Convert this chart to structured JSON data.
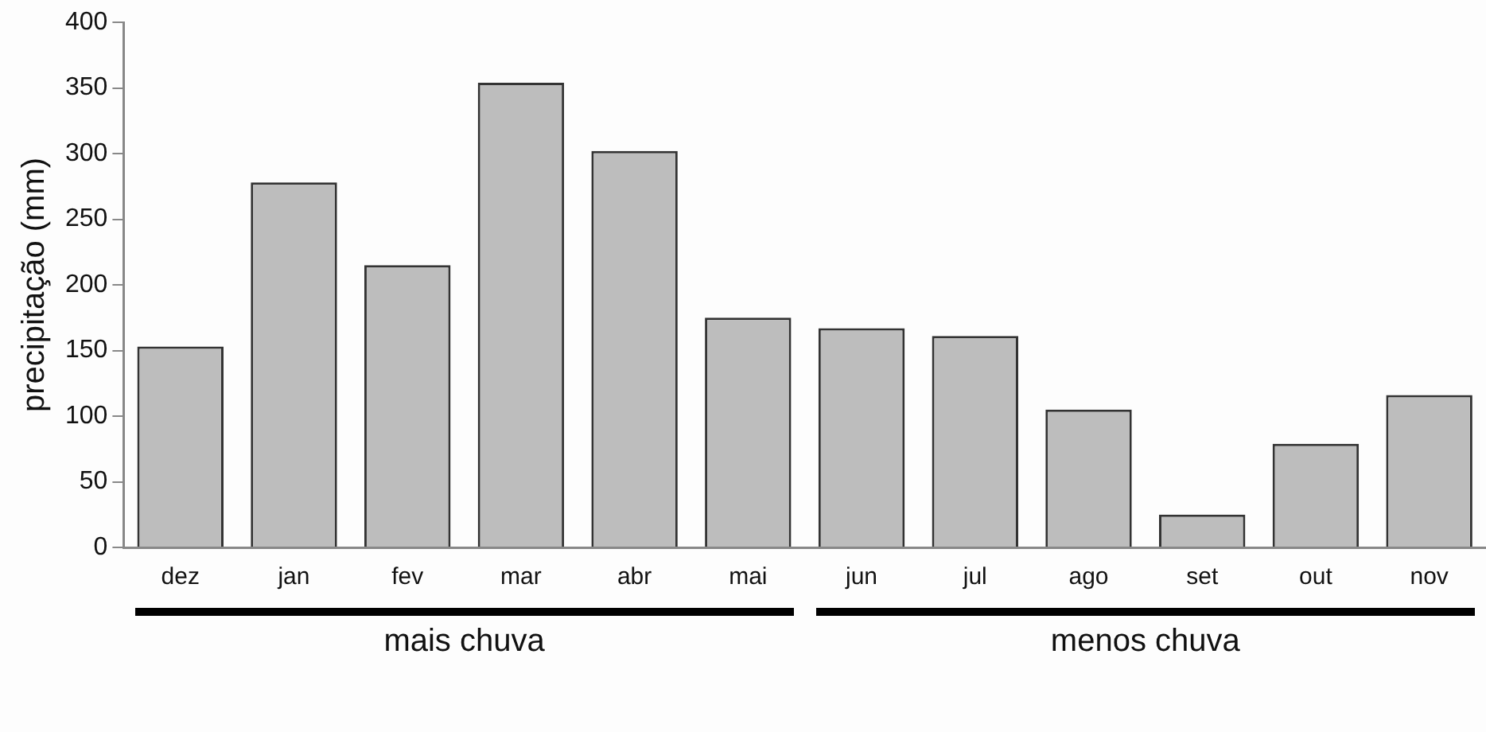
{
  "chart_data": {
    "type": "bar",
    "ylabel": "precipitação (mm)",
    "categories": [
      "dez",
      "jan",
      "fev",
      "mar",
      "abr",
      "mai",
      "jun",
      "jul",
      "ago",
      "set",
      "out",
      "nov"
    ],
    "values": [
      153,
      278,
      215,
      354,
      302,
      175,
      167,
      161,
      105,
      25,
      79,
      116
    ],
    "color": "#bdbdbd",
    "ylim": [
      0,
      400
    ],
    "yticks": [
      0,
      50,
      100,
      150,
      200,
      250,
      300,
      350,
      400
    ],
    "grid": false,
    "legend": false,
    "annotations": [
      "mais chuva",
      "menos chuva"
    ]
  }
}
